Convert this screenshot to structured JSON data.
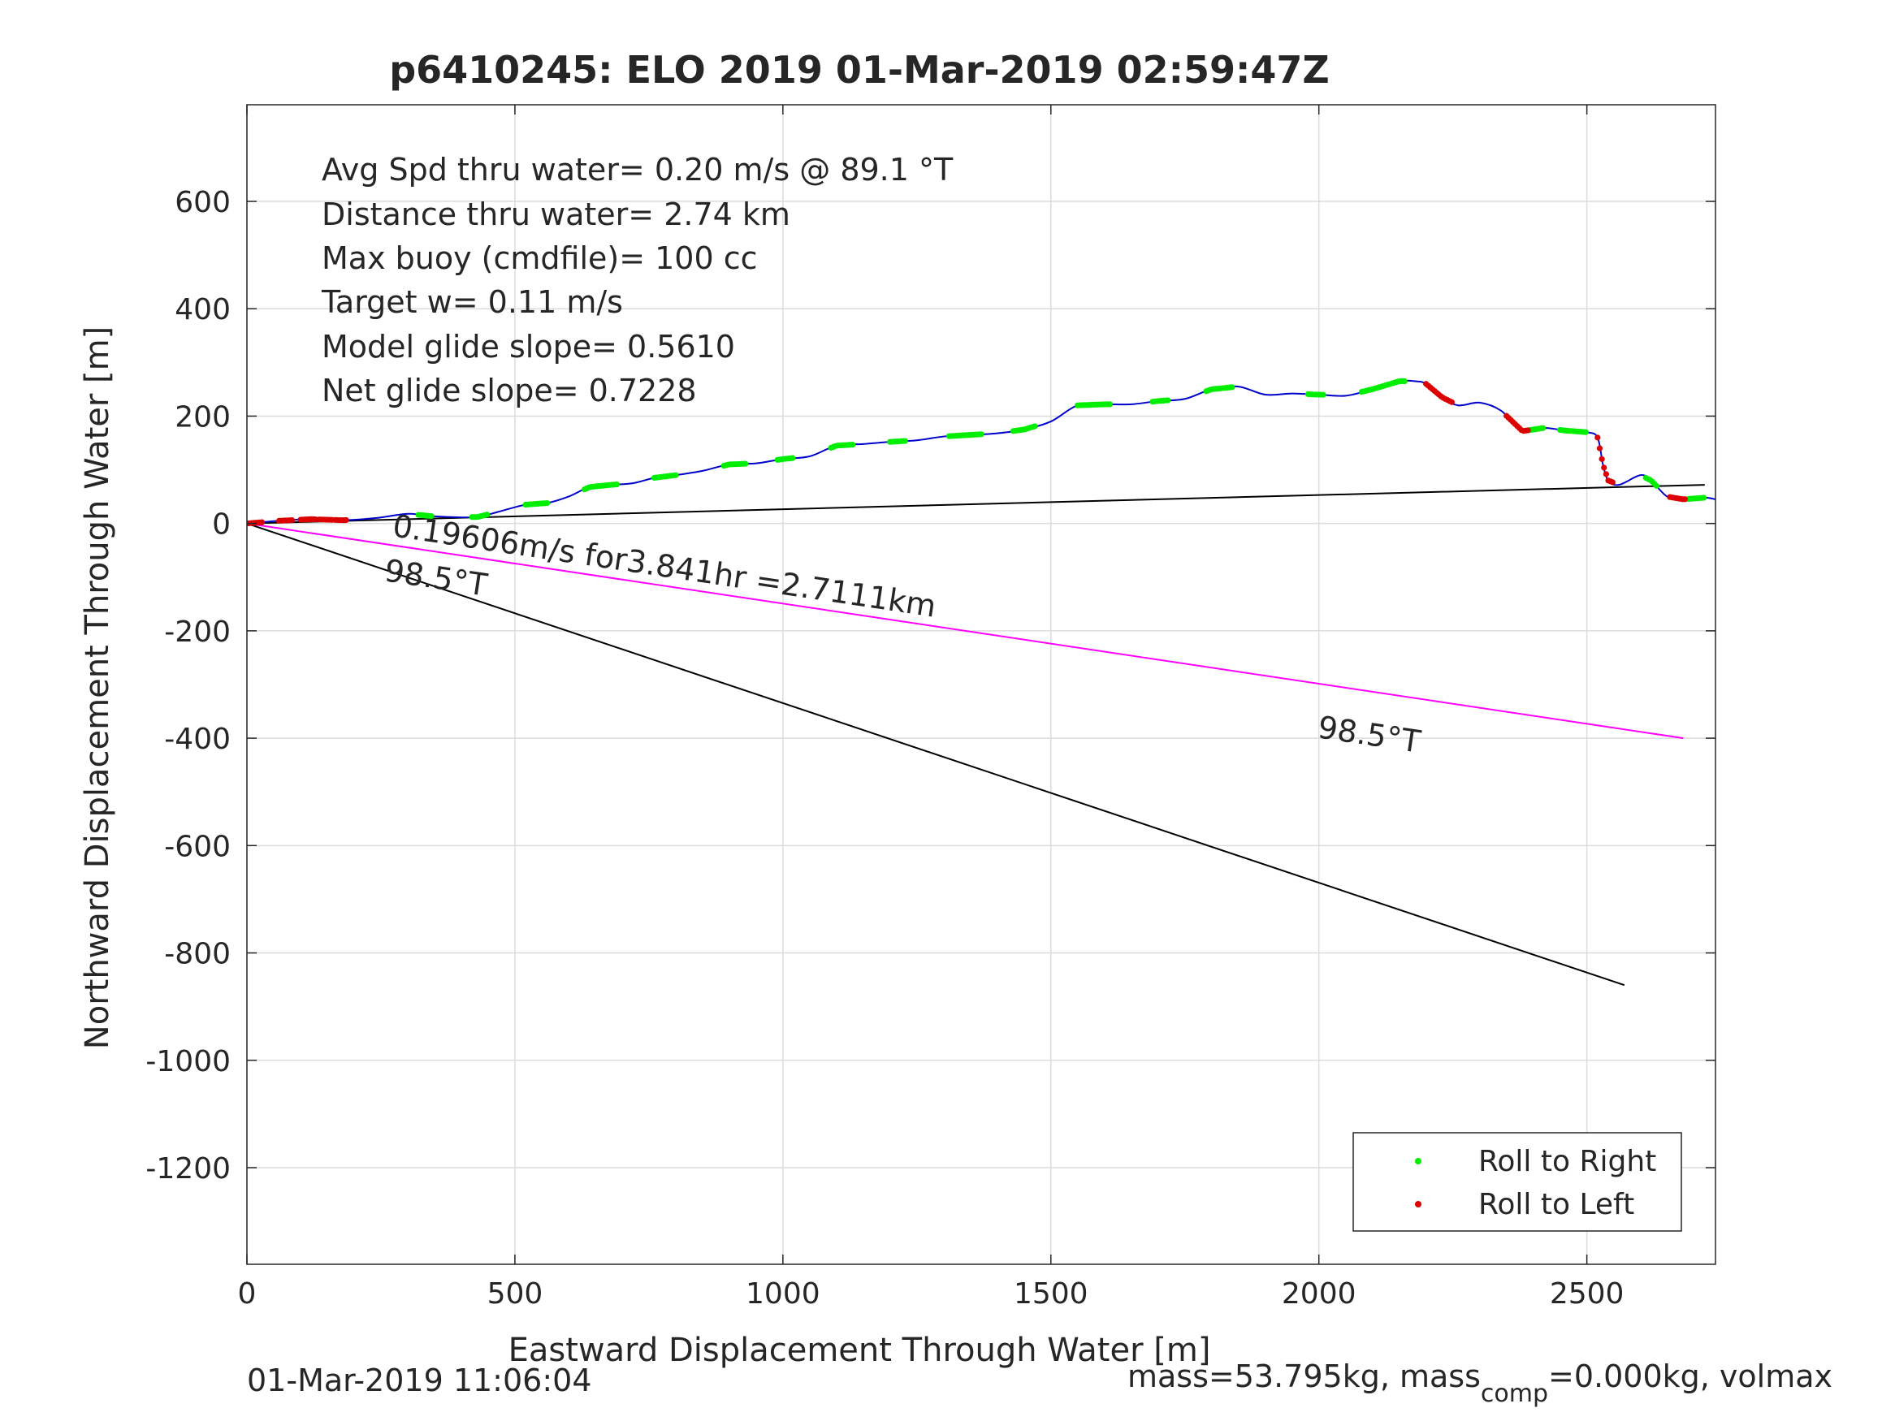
{
  "chart_data": {
    "type": "line",
    "title": "p6410245: ELO 2019 01-Mar-2019 02:59:47Z",
    "xlabel": "Eastward Displacement Through Water [m]",
    "ylabel": "Northward Displacement Through Water [m]",
    "xlim": [
      0,
      2740
    ],
    "ylim": [
      -1380,
      780
    ],
    "xticks": [
      0,
      500,
      1000,
      1500,
      2000,
      2500
    ],
    "xtick_labels": [
      "0",
      "500",
      "1000",
      "1500",
      "2000",
      "2500"
    ],
    "yticks": [
      600,
      400,
      200,
      0,
      -200,
      -400,
      -600,
      -800,
      -1000,
      -1200
    ],
    "ytick_labels": [
      "600",
      "400",
      "200",
      "0",
      "-200",
      "-400",
      "-600",
      "-800",
      "-1000",
      "-1200"
    ],
    "grid": true,
    "legend_position": "bottom-right",
    "info_lines": [
      "Avg Spd thru water=  0.20 m/s @  89.1 °T",
      "Distance thru water=  2.74 km",
      "Max buoy (cmdfile)= 100 cc",
      "Target w= 0.11 m/s",
      "Model glide slope= 0.5610",
      "Net glide slope= 0.7228"
    ],
    "annotations": {
      "current_label": "0.19606m/s for3.841hr =2.7111km",
      "heading_label_1": "98.5°T",
      "heading_label_2": "98.5°T"
    },
    "track": {
      "name": "",
      "color": "#0000cc",
      "x": [
        0,
        60,
        120,
        180,
        240,
        300,
        340,
        380,
        430,
        470,
        520,
        560,
        600,
        640,
        680,
        720,
        760,
        800,
        850,
        900,
        950,
        1000,
        1050,
        1100,
        1150,
        1200,
        1250,
        1300,
        1350,
        1400,
        1450,
        1500,
        1550,
        1600,
        1650,
        1700,
        1750,
        1800,
        1850,
        1900,
        1950,
        2000,
        2050,
        2100,
        2150,
        2180,
        2200,
        2230,
        2260,
        2300,
        2340,
        2380,
        2420,
        2460,
        2500,
        2520,
        2530,
        2540,
        2560,
        2600,
        2620,
        2650,
        2680,
        2720,
        2740
      ],
      "y": [
        0,
        5,
        8,
        6,
        10,
        18,
        14,
        12,
        12,
        22,
        35,
        38,
        50,
        68,
        72,
        75,
        85,
        90,
        98,
        110,
        112,
        120,
        125,
        145,
        148,
        152,
        155,
        162,
        165,
        168,
        175,
        190,
        220,
        222,
        222,
        228,
        232,
        250,
        255,
        240,
        242,
        240,
        238,
        250,
        265,
        265,
        260,
        235,
        220,
        225,
        210,
        172,
        178,
        173,
        170,
        160,
        110,
        80,
        72,
        90,
        80,
        50,
        45,
        48,
        45
      ]
    },
    "net_line": {
      "x": [
        0,
        2720
      ],
      "y": [
        0,
        72
      ],
      "color": "#000000"
    },
    "current_line": {
      "x": [
        0,
        2680
      ],
      "y": [
        0,
        -400
      ],
      "color": "#ff00ff"
    },
    "heading_line": {
      "x": [
        0,
        2570
      ],
      "y": [
        0,
        -860
      ],
      "color": "#000000"
    },
    "series": [
      {
        "name": "Roll to Right",
        "color": "#00ee00",
        "segments": [
          [
            320,
            345
          ],
          [
            420,
            450
          ],
          [
            520,
            560
          ],
          [
            630,
            690
          ],
          [
            760,
            800
          ],
          [
            890,
            930
          ],
          [
            990,
            1020
          ],
          [
            1090,
            1130
          ],
          [
            1200,
            1230
          ],
          [
            1310,
            1370
          ],
          [
            1430,
            1470
          ],
          [
            1550,
            1610
          ],
          [
            1690,
            1720
          ],
          [
            1790,
            1840
          ],
          [
            1980,
            2010
          ],
          [
            2080,
            2160
          ],
          [
            2390,
            2420
          ],
          [
            2450,
            2500
          ],
          [
            2610,
            2630
          ],
          [
            2690,
            2720
          ]
        ]
      },
      {
        "name": "Roll to Left",
        "color": "#dd0000",
        "segments": [
          [
            0,
            30
          ],
          [
            60,
            85
          ],
          [
            100,
            130
          ],
          [
            135,
            160
          ],
          [
            165,
            185
          ],
          [
            2200,
            2250
          ],
          [
            2350,
            2390
          ],
          [
            2520,
            2550
          ],
          [
            2655,
            2685
          ]
        ]
      }
    ]
  },
  "footer": {
    "timestamp": "01-Mar-2019 11:06:04",
    "mass_prefix": "mass=53.795kg, mass",
    "mass_sub": "comp",
    "mass_suffix": "=0.000kg, volmax"
  }
}
